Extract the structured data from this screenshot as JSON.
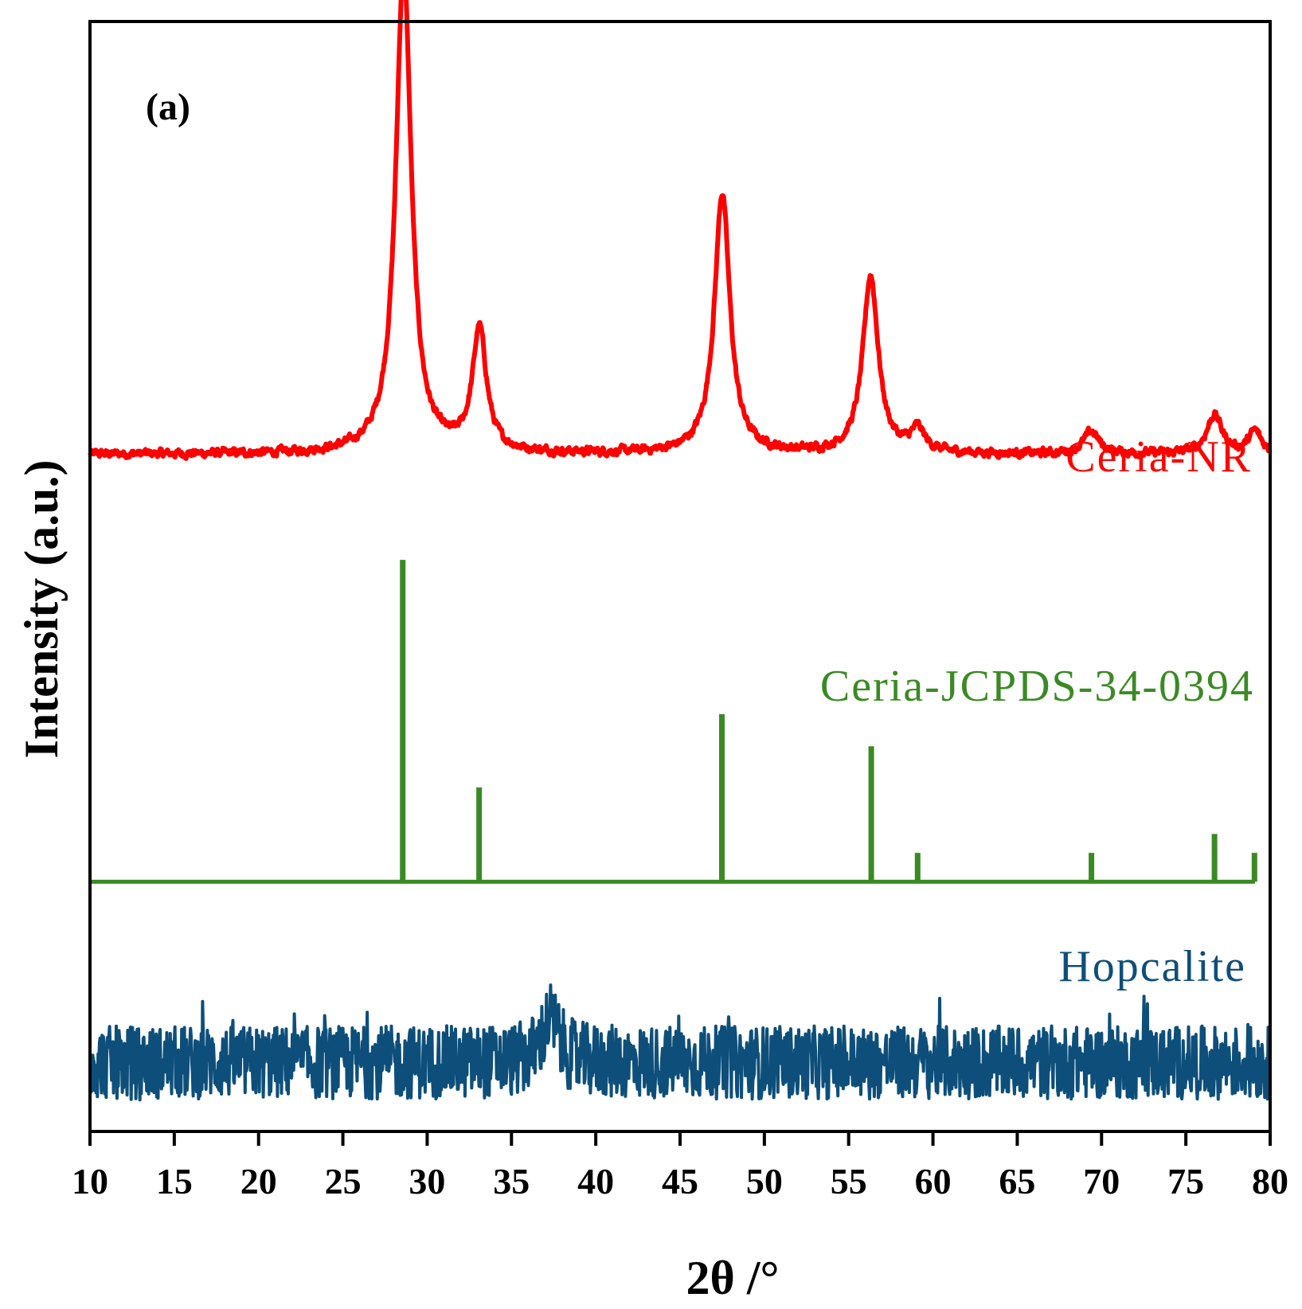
{
  "chart_data": {
    "type": "line",
    "panel_label": "(a)",
    "xlabel": "2θ /°",
    "ylabel": "Intensity (a.u.)",
    "xlim": [
      10,
      80
    ],
    "xticks": [
      10,
      15,
      20,
      25,
      30,
      35,
      40,
      45,
      50,
      55,
      60,
      65,
      70,
      75,
      80
    ],
    "ylim": [
      0,
      100
    ],
    "grid": false,
    "yticks_shown": false,
    "series": [
      {
        "name": "Ceria-NR",
        "color": "#ff0000",
        "style": "line",
        "baseline": 61,
        "noise": 0.7,
        "peaks": [
          {
            "x": 28.6,
            "height": 44,
            "width": 0.55
          },
          {
            "x": 33.1,
            "height": 11,
            "width": 0.5
          },
          {
            "x": 47.5,
            "height": 23.5,
            "width": 0.55
          },
          {
            "x": 56.3,
            "height": 16,
            "width": 0.55
          },
          {
            "x": 59.1,
            "height": 2,
            "width": 0.5
          },
          {
            "x": 69.4,
            "height": 2,
            "width": 0.55
          },
          {
            "x": 76.7,
            "height": 3.5,
            "width": 0.55
          },
          {
            "x": 79.1,
            "height": 2,
            "width": 0.45
          }
        ]
      },
      {
        "name": "Ceria-JCPDS-34-0394",
        "color": "#3a8a24",
        "style": "sticks",
        "baseline": 22.5,
        "x_end": 79.1,
        "sticks": [
          {
            "x": 28.55,
            "height": 29
          },
          {
            "x": 33.08,
            "height": 8.5
          },
          {
            "x": 47.48,
            "height": 15.1
          },
          {
            "x": 56.34,
            "height": 12.2
          },
          {
            "x": 59.09,
            "height": 2.6
          },
          {
            "x": 69.4,
            "height": 2.6
          },
          {
            "x": 76.7,
            "height": 4.3
          },
          {
            "x": 79.07,
            "height": 2.6
          }
        ]
      },
      {
        "name": "Hopcalite",
        "color": "#0d4f7a",
        "style": "noise",
        "baseline": 6.2,
        "noise": 3.3,
        "peaks": [
          {
            "x": 37.3,
            "height": 4,
            "width": 0.6
          }
        ]
      }
    ]
  }
}
